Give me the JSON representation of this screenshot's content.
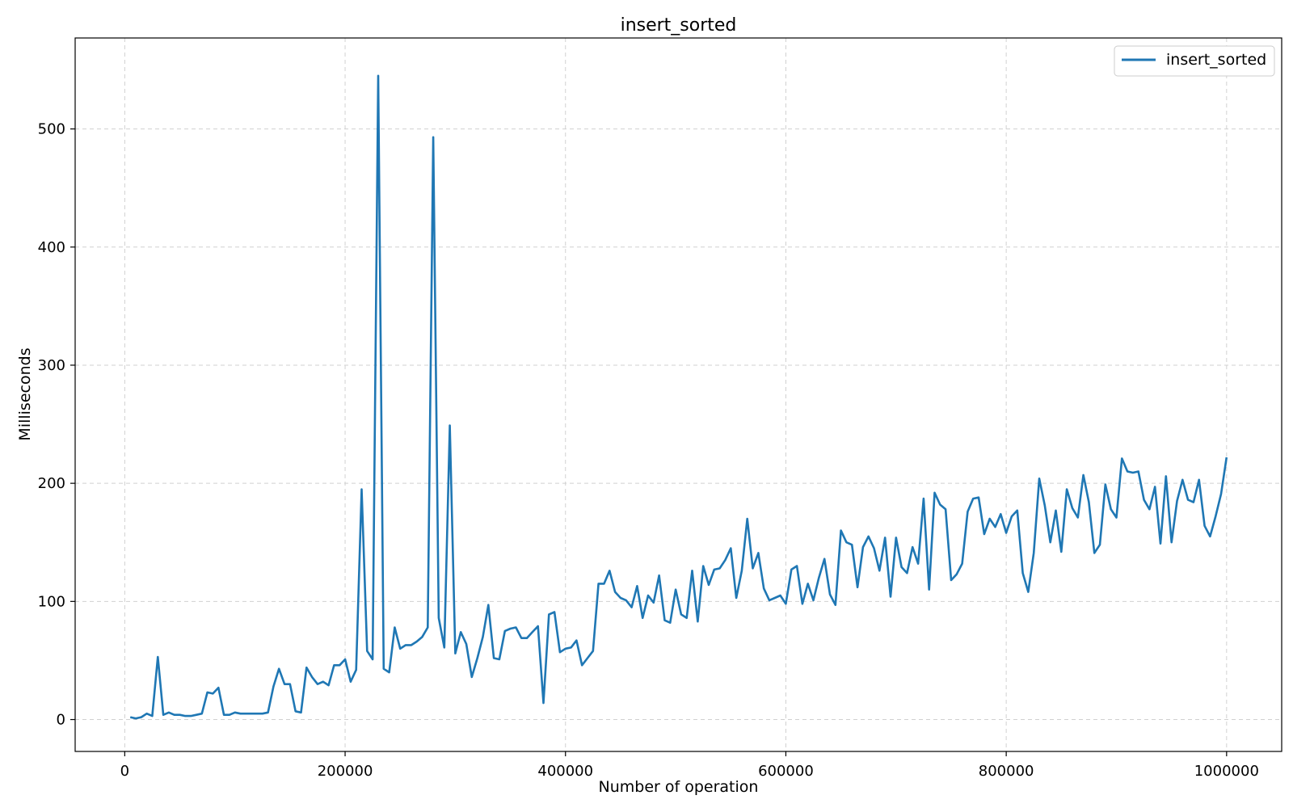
{
  "chart_data": {
    "type": "line",
    "title": "insert_sorted",
    "xlabel": "Number of operation",
    "ylabel": "Milliseconds",
    "xlim": [
      -45000,
      1050000
    ],
    "ylim": [
      -27,
      577
    ],
    "xticks": [
      0,
      200000,
      400000,
      600000,
      800000,
      1000000
    ],
    "xtick_labels": [
      "0",
      "200000",
      "400000",
      "600000",
      "800000",
      "1000000"
    ],
    "yticks": [
      0,
      100,
      200,
      300,
      400,
      500
    ],
    "ytick_labels": [
      "0",
      "100",
      "200",
      "300",
      "400",
      "500"
    ],
    "grid": true,
    "legend_position": "top-right",
    "colors": {
      "series": "#1f77b4",
      "grid": "#d0d0d0",
      "axes": "#000000"
    },
    "series": [
      {
        "name": "insert_sorted",
        "x": [
          5000,
          10000,
          15000,
          20000,
          25000,
          30000,
          35000,
          40000,
          45000,
          50000,
          55000,
          60000,
          65000,
          70000,
          75000,
          80000,
          85000,
          90000,
          95000,
          100000,
          105000,
          110000,
          115000,
          120000,
          125000,
          130000,
          135000,
          140000,
          145000,
          150000,
          155000,
          160000,
          165000,
          170000,
          175000,
          180000,
          185000,
          190000,
          195000,
          200000,
          205000,
          210000,
          215000,
          220000,
          225000,
          230000,
          235000,
          240000,
          245000,
          250000,
          255000,
          260000,
          265000,
          270000,
          275000,
          280000,
          285000,
          290000,
          295000,
          300000,
          305000,
          310000,
          315000,
          320000,
          325000,
          330000,
          335000,
          340000,
          345000,
          350000,
          355000,
          360000,
          365000,
          370000,
          375000,
          380000,
          385000,
          390000,
          395000,
          400000,
          405000,
          410000,
          415000,
          420000,
          425000,
          430000,
          435000,
          440000,
          445000,
          450000,
          455000,
          460000,
          465000,
          470000,
          475000,
          480000,
          485000,
          490000,
          495000,
          500000,
          505000,
          510000,
          515000,
          520000,
          525000,
          530000,
          535000,
          540000,
          545000,
          550000,
          555000,
          560000,
          565000,
          570000,
          575000,
          580000,
          585000,
          590000,
          595000,
          600000,
          605000,
          610000,
          615000,
          620000,
          625000,
          630000,
          635000,
          640000,
          645000,
          650000,
          655000,
          660000,
          665000,
          670000,
          675000,
          680000,
          685000,
          690000,
          695000,
          700000,
          705000,
          710000,
          715000,
          720000,
          725000,
          730000,
          735000,
          740000,
          745000,
          750000,
          755000,
          760000,
          765000,
          770000,
          775000,
          780000,
          785000,
          790000,
          795000,
          800000,
          805000,
          810000,
          815000,
          820000,
          825000,
          830000,
          835000,
          840000,
          845000,
          850000,
          855000,
          860000,
          865000,
          870000,
          875000,
          880000,
          885000,
          890000,
          895000,
          900000,
          905000,
          910000,
          915000,
          920000,
          925000,
          930000,
          935000,
          940000,
          945000,
          950000,
          955000,
          960000,
          965000,
          970000,
          975000,
          980000,
          985000,
          990000,
          995000,
          1000000
        ],
        "values": [
          2,
          1,
          2,
          5,
          3,
          53,
          4,
          6,
          4,
          4,
          3,
          3,
          4,
          5,
          23,
          22,
          27,
          4,
          4,
          6,
          5,
          5,
          5,
          5,
          5,
          6,
          28,
          43,
          30,
          30,
          7,
          6,
          44,
          36,
          30,
          32,
          29,
          46,
          46,
          51,
          32,
          42,
          195,
          58,
          51,
          545,
          43,
          40,
          78,
          60,
          63,
          63,
          66,
          70,
          78,
          493,
          86,
          61,
          249,
          56,
          74,
          64,
          36,
          52,
          70,
          97,
          52,
          51,
          75,
          77,
          78,
          69,
          69,
          74,
          79,
          14,
          89,
          91,
          57,
          60,
          61,
          67,
          46,
          52,
          58,
          115,
          115,
          126,
          108,
          103,
          101,
          95,
          113,
          86,
          105,
          99,
          122,
          84,
          82,
          110,
          89,
          86,
          126,
          83,
          130,
          114,
          127,
          128,
          135,
          145,
          103,
          126,
          170,
          128,
          141,
          111,
          101,
          103,
          105,
          98,
          127,
          130,
          98,
          115,
          101,
          120,
          136,
          106,
          97,
          160,
          150,
          148,
          112,
          146,
          155,
          145,
          126,
          154,
          104,
          154,
          129,
          124,
          146,
          132,
          187,
          110,
          192,
          182,
          178,
          118,
          123,
          132,
          176,
          187,
          188,
          157,
          170,
          163,
          174,
          158,
          172,
          177,
          124,
          108,
          141,
          204,
          181,
          150,
          177,
          142,
          195,
          179,
          171,
          207,
          184,
          141,
          148,
          199,
          178,
          171,
          221,
          210,
          209,
          210,
          186,
          178,
          197,
          149,
          206,
          150,
          185,
          203,
          186,
          184,
          203,
          164,
          155,
          172,
          191,
          222
        ]
      }
    ]
  }
}
